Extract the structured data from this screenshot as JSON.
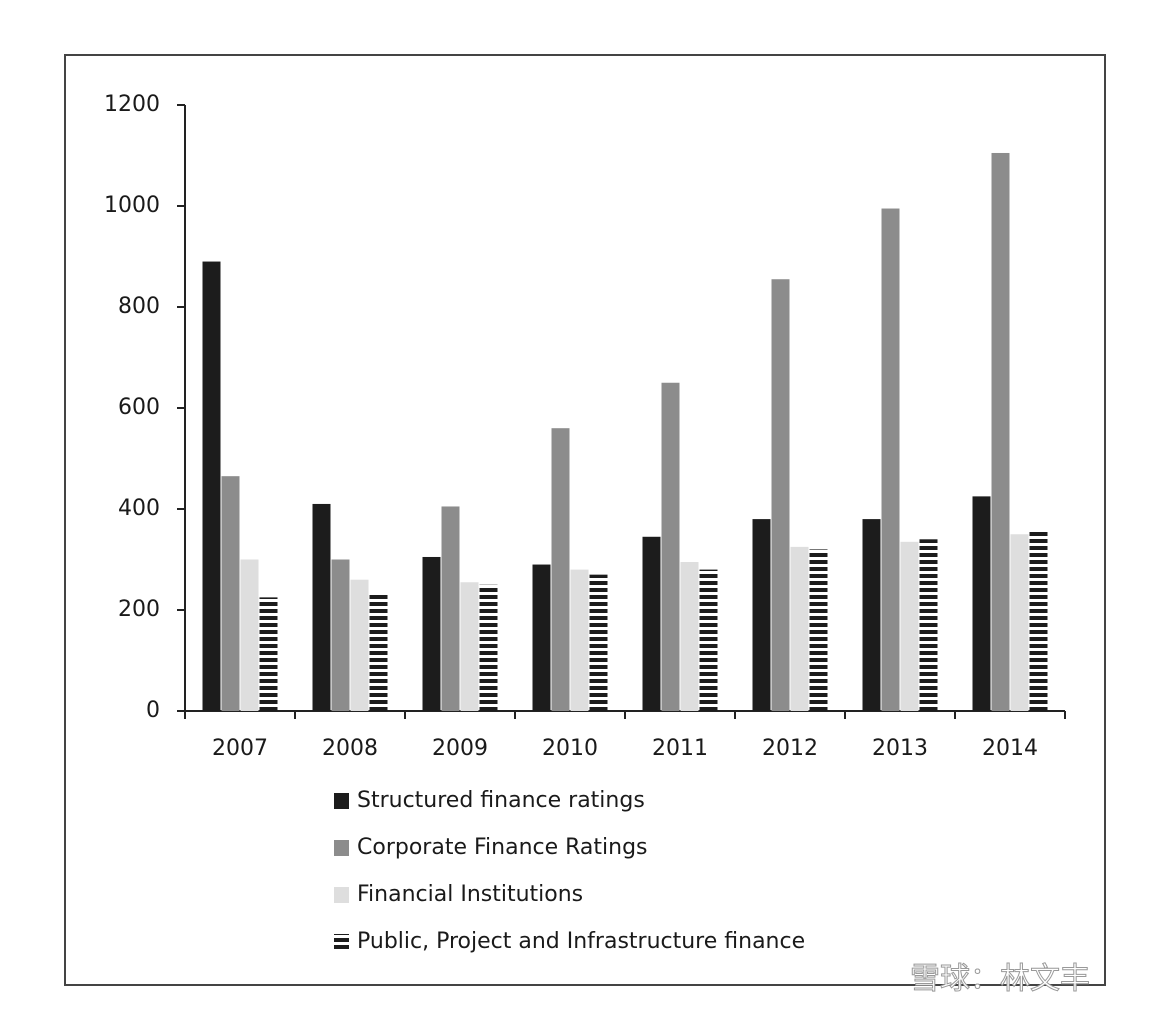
{
  "chart_data": {
    "type": "bar",
    "categories": [
      "2007",
      "2008",
      "2009",
      "2010",
      "2011",
      "2012",
      "2013",
      "2014"
    ],
    "series": [
      {
        "name": "Structured finance ratings",
        "color": "#1c1c1c",
        "values": [
          890,
          410,
          305,
          290,
          345,
          380,
          380,
          425
        ]
      },
      {
        "name": "Corporate Finance Ratings",
        "color": "#8c8c8c",
        "values": [
          465,
          300,
          405,
          560,
          650,
          855,
          995,
          1105
        ]
      },
      {
        "name": "Financial Institutions",
        "color": "#dedede",
        "values": [
          300,
          260,
          255,
          280,
          295,
          325,
          335,
          350
        ]
      },
      {
        "name": "Public, Project and Infrastructure finance",
        "color": "#1c1c1c",
        "hatch": true,
        "values": [
          225,
          235,
          250,
          270,
          280,
          320,
          340,
          355
        ]
      }
    ],
    "ylim": [
      0,
      1200
    ],
    "yticks": [
      0,
      200,
      400,
      600,
      800,
      1000,
      1200
    ],
    "grid": false,
    "legend": "bottom",
    "watermark": "雪球：林文丰"
  }
}
